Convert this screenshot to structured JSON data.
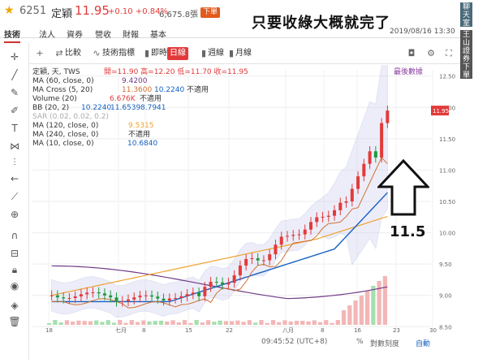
{
  "header": {
    "code": "6251",
    "name": "定穎",
    "price": "11.95",
    "change": "+0.10 +0.84%",
    "volume": "6,675.8張",
    "order_label": "下單",
    "note": "只要收綠大概就完了",
    "datetime": "2019/08/16 13:30"
  },
  "nav_tabs": [
    "技術",
    "法人",
    "資券",
    "營收",
    "財報",
    "基本"
  ],
  "side": {
    "a": "聊天室",
    "b": "王山證券下單"
  },
  "toolbar": {
    "compare": "比較",
    "indicators": "技術指標",
    "realtime": "即時",
    "day": "日線",
    "week": "週線",
    "month": "月線"
  },
  "chart_legend": {
    "title": "定穎, 天, TWS",
    "ohlc": "開=11.90 高=12.20 低=11.70 收=11.95",
    "latest_label": "最後數據",
    "ma60": "MA (60, close, 0)",
    "ma60v": "9.4200",
    "macross": "MA Cross (5, 20)",
    "macross_v1": "11.3600",
    "macross_v2": "10.2240",
    "macross_na": "不適用",
    "volume": "Volume (20)",
    "volume_v": "6.676K",
    "volume_na": "不適用",
    "bb": "BB (20, 2)",
    "bb_v1": "10.2240",
    "bb_v2": "11.6539",
    "bb_v3": "8.7941",
    "sar": "SAR (0.02, 0.02, 0.2)",
    "ma120": "MA (120, close, 0)",
    "ma120v": "9.5315",
    "ma240": "MA (240, close, 0)",
    "ma240v": "不適用",
    "ma10": "MA (10, close, 0)",
    "ma10v": "10.6840"
  },
  "annotation": "11.5",
  "status_bar": {
    "time": "09:45:52 (UTC+8)",
    "pct": "%",
    "log": "對數刻度",
    "auto": "自動"
  },
  "chart_data": {
    "type": "candlestick",
    "yaxis": {
      "min": 8.4,
      "max": 12.6,
      "ticks": [
        "12.50",
        "12.00",
        "11.50",
        "11.00",
        "10.50",
        "10.00",
        "9.50",
        "9.00",
        "8.50"
      ]
    },
    "xaxis": {
      "ticks": [
        "18",
        "七月",
        "8",
        "15",
        "22",
        "八月",
        "8",
        "16",
        "23",
        "30"
      ]
    },
    "last_price_tag": "11.95",
    "colors": {
      "up": "#e23a3a",
      "down": "#1f9a3c",
      "ma60": "#6f3b86",
      "ma120": "#f0a030",
      "ma10": "#1660c0",
      "ma5": "#d07030",
      "bb": "#9aa6d6"
    }
  }
}
